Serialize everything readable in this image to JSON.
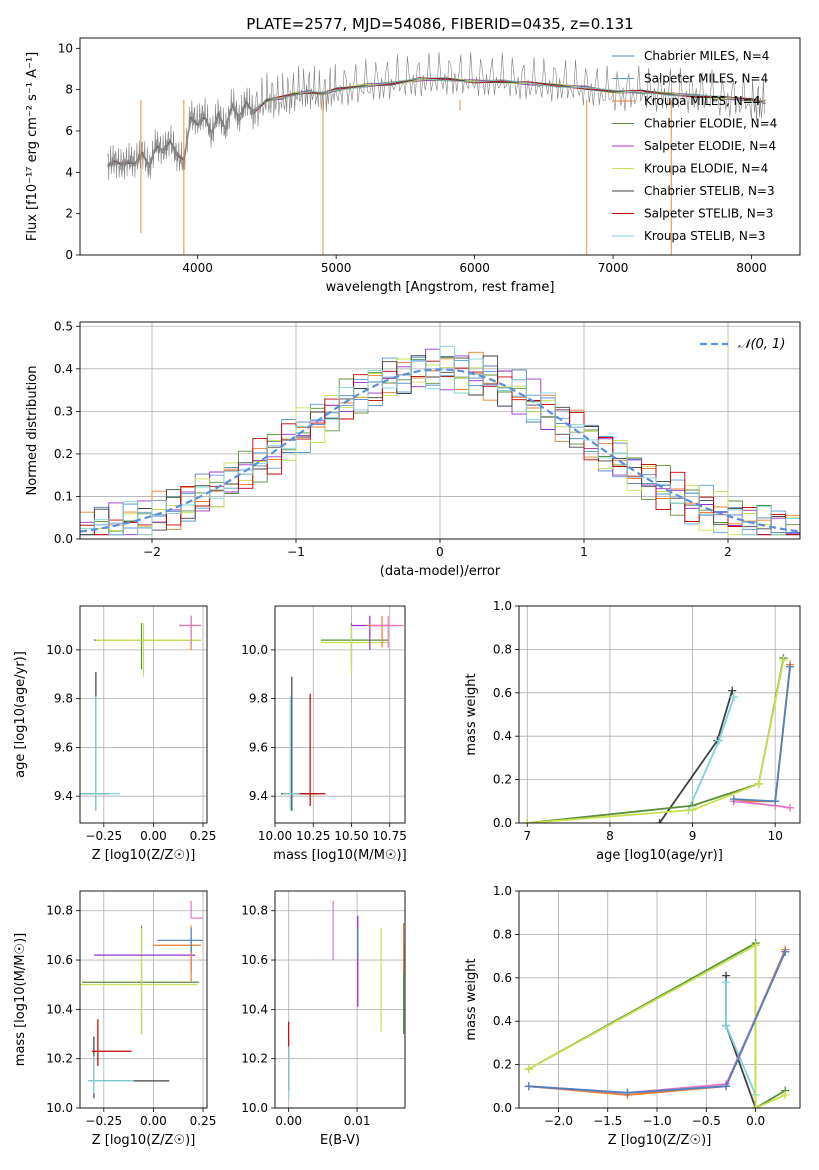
{
  "figure": {
    "title": "PLATE=2577, MJD=54086, FIBERID=0435, z=0.131"
  },
  "chart_data": [
    {
      "id": "spectrum",
      "type": "line",
      "xlabel": "wavelength [Angstrom, rest frame]",
      "ylabel": "Flux [f_λ 10^-17 erg cm^-2 s^-1 A^-1]",
      "xlim": [
        3150,
        8350
      ],
      "ylim": [
        0,
        10.5
      ],
      "xticks": [
        4000,
        5000,
        6000,
        7000,
        8000
      ],
      "yticks": [
        0,
        2,
        4,
        6,
        8,
        10
      ],
      "legend_position": "top-right",
      "data_series": {
        "name": "",
        "color": "#808080",
        "x": [
          3350,
          3400,
          3450,
          3500,
          3550,
          3600,
          3650,
          3700,
          3750,
          3800,
          3850,
          3900,
          3950,
          4000,
          4050,
          4100,
          4150,
          4200,
          4250,
          4300,
          4350,
          4400,
          4500,
          4600,
          4700,
          4800,
          4900,
          5000,
          5200,
          5400,
          5600,
          5800,
          6000,
          6200,
          6400,
          6600,
          6800,
          7000,
          7200,
          7400,
          7600,
          7800,
          8000,
          8100
        ],
        "y": [
          4.4,
          4.6,
          4.3,
          4.6,
          4.5,
          5.0,
          4.2,
          5.4,
          5.0,
          5.6,
          4.8,
          4.5,
          6.8,
          6.4,
          6.9,
          5.8,
          6.9,
          6.0,
          7.4,
          6.5,
          7.5,
          6.9,
          7.6,
          7.5,
          7.8,
          8.0,
          7.7,
          8.0,
          8.2,
          8.4,
          8.5,
          8.6,
          8.5,
          8.5,
          8.3,
          8.3,
          8.1,
          7.8,
          7.9,
          7.8,
          7.8,
          7.6,
          7.4,
          7.3
        ]
      },
      "model_series": [
        {
          "name": "Chabrier MILES, N_SSP=4",
          "color": "#4f81bd"
        },
        {
          "name": "Salpeter MILES, N_SSP=4",
          "color": "#5b9bd5"
        },
        {
          "name": "Kroupa MILES, N_SSP=4",
          "color": "#ed7d31"
        },
        {
          "name": "Chabrier ELODIE, N_SSP=4",
          "color": "#5a8f3a"
        },
        {
          "name": "Salpeter ELODIE, N_SSP=4",
          "color": "#9b30c8"
        },
        {
          "name": "Kroupa ELODIE, N_SSP=4",
          "color": "#c8e050"
        },
        {
          "name": "Chabrier STELIB, N_SSP=3",
          "color": "#404040"
        },
        {
          "name": "Salpeter STELIB, N_SSP=3",
          "color": "#c00000"
        },
        {
          "name": "Kroupa STELIB, N_SSP=3",
          "color": "#7fd4d8"
        }
      ],
      "model_x": [
        3350,
        3400,
        3450,
        3500,
        3550,
        3600,
        3650,
        3700,
        3750,
        3800,
        3850,
        3900,
        3950,
        4000,
        4050,
        4100,
        4150,
        4200,
        4250,
        4300,
        4350,
        4400,
        4500,
        4600,
        4700,
        4800,
        4900,
        5000,
        5200,
        5400,
        5600,
        5800,
        6000,
        6200,
        6400,
        6600,
        6800,
        7000,
        7200,
        7400,
        7600,
        7800,
        8000,
        8100
      ],
      "model_y": [
        4.3,
        4.5,
        4.4,
        4.5,
        4.4,
        4.9,
        4.3,
        5.3,
        5.0,
        5.5,
        4.9,
        4.6,
        6.6,
        6.3,
        6.7,
        5.9,
        6.8,
        6.1,
        7.3,
        6.6,
        7.4,
        6.9,
        7.5,
        7.6,
        7.8,
        7.9,
        7.8,
        8.0,
        8.2,
        8.3,
        8.5,
        8.5,
        8.4,
        8.4,
        8.3,
        8.2,
        8.1,
        7.9,
        7.9,
        7.8,
        7.7,
        7.6,
        7.5,
        7.4
      ]
    },
    {
      "id": "residuals",
      "type": "line",
      "xlabel": "(data-model)/error",
      "ylabel": "Normed distribution",
      "xlim": [
        -2.5,
        2.5
      ],
      "ylim": [
        0,
        0.51
      ],
      "xticks": [
        -2,
        -1,
        0,
        1,
        2
      ],
      "yticks": [
        0.0,
        0.1,
        0.2,
        0.3,
        0.4,
        0.5
      ],
      "legend_position": "top-right",
      "gaussian_label": "𝒩(0, 1)",
      "gaussian_color": "#5b8fe0",
      "hist_colors": [
        "#4f81bd",
        "#5b9bd5",
        "#ed7d31",
        "#5a8f3a",
        "#9b30c8",
        "#c8e050",
        "#404040",
        "#c00000",
        "#7fd4d8"
      ]
    },
    {
      "id": "age-vs-Z",
      "type": "scatter",
      "xlabel": "Z [log10(Z/Z☉)]",
      "ylabel": "age [log10(age/yr)]",
      "xlim": [
        -0.37,
        0.27
      ],
      "ylim": [
        9.29,
        10.18
      ],
      "xticks": [
        -0.25,
        0.0,
        0.25
      ],
      "yticks": [
        9.4,
        9.6,
        9.8,
        10.0
      ],
      "points": [
        {
          "x": -0.29,
          "y": 9.41,
          "xerr": [
            0.37,
            0.07
          ],
          "yerr": [
            0.07,
            0.5
          ],
          "color": "#404040"
        },
        {
          "x": -0.29,
          "y": 9.41,
          "xerr": [
            0.12,
            0.12
          ],
          "yerr": [
            0.07,
            0.4
          ],
          "color": "#7fd4d8"
        },
        {
          "x": -0.06,
          "y": 10.04,
          "xerr": [
            0.24,
            0.3
          ],
          "yerr": [
            0.12,
            0.07
          ],
          "color": "#5a8f3a"
        },
        {
          "x": -0.05,
          "y": 10.04,
          "xerr": [
            0.24,
            0.29
          ],
          "yerr": [
            0.15,
            0.07
          ],
          "color": "#c8e050"
        },
        {
          "x": 0.19,
          "y": 10.1,
          "xerr": [
            0.06,
            0.05
          ],
          "yerr": [
            0.1,
            0.04
          ],
          "color": "#ed7d31"
        },
        {
          "x": 0.19,
          "y": 10.1,
          "xerr": [
            0.06,
            0.05
          ],
          "yerr": [
            0.08,
            0.04
          ],
          "color": "#e377c2"
        }
      ]
    },
    {
      "id": "age-vs-mass",
      "type": "scatter",
      "xlabel": "mass [log10(M/M☉)]",
      "ylabel": "",
      "xlim": [
        10.0,
        10.85
      ],
      "ylim": [
        9.29,
        10.18
      ],
      "xticks": [
        10.0,
        10.25,
        10.5,
        10.75
      ],
      "yticks": [
        9.4,
        9.6,
        9.8,
        10.0
      ],
      "points": [
        {
          "x": 10.11,
          "y": 9.41,
          "xerr": [
            0.07,
            0.17
          ],
          "yerr": [
            0.07,
            0.48
          ],
          "color": "#404040"
        },
        {
          "x": 10.1,
          "y": 9.41,
          "xerr": [
            0.05,
            0.1
          ],
          "yerr": [
            0.07,
            0.4
          ],
          "color": "#7fd4d8"
        },
        {
          "x": 10.23,
          "y": 9.41,
          "xerr": [
            0.07,
            0.1
          ],
          "yerr": [
            0.05,
            0.41
          ],
          "color": "#c00000"
        },
        {
          "x": 10.5,
          "y": 10.04,
          "xerr": [
            0.2,
            0.24
          ],
          "yerr": [
            0.12,
            0.07
          ],
          "color": "#5a8f3a"
        },
        {
          "x": 10.5,
          "y": 10.03,
          "xerr": [
            0.2,
            0.24
          ],
          "yerr": [
            0.13,
            0.07
          ],
          "color": "#c8e050"
        },
        {
          "x": 10.62,
          "y": 10.1,
          "xerr": [
            0.12,
            0.12
          ],
          "yerr": [
            0.1,
            0.04
          ],
          "color": "#9b30c8"
        },
        {
          "x": 10.7,
          "y": 10.1,
          "xerr": [
            0.1,
            0.1
          ],
          "yerr": [
            0.09,
            0.04
          ],
          "color": "#ed7d31"
        },
        {
          "x": 10.74,
          "y": 10.1,
          "xerr": [
            0.1,
            0.1
          ],
          "yerr": [
            0.09,
            0.04
          ],
          "color": "#e377c2"
        }
      ]
    },
    {
      "id": "weight-vs-age",
      "type": "line",
      "xlabel": "age [log10(age/yr)]",
      "ylabel": "mass weight",
      "xlim": [
        6.9,
        10.3
      ],
      "ylim": [
        0,
        1.0
      ],
      "xticks": [
        7,
        8,
        9,
        10
      ],
      "yticks": [
        0.0,
        0.2,
        0.4,
        0.6,
        0.8,
        1.0
      ],
      "series": [
        {
          "color": "#404040",
          "x": [
            8.6,
            9.3,
            9.48
          ],
          "y": [
            0.0,
            0.38,
            0.61
          ]
        },
        {
          "color": "#7fd4d8",
          "x": [
            8.95,
            9.32,
            9.5
          ],
          "y": [
            0.06,
            0.38,
            0.58
          ]
        },
        {
          "color": "#5a8f3a",
          "x": [
            7.0,
            9.0,
            9.8,
            10.1
          ],
          "y": [
            0.0,
            0.08,
            0.18,
            0.76
          ]
        },
        {
          "color": "#c8e050",
          "x": [
            7.0,
            9.0,
            9.8,
            10.1
          ],
          "y": [
            0.0,
            0.06,
            0.18,
            0.75
          ]
        },
        {
          "color": "#ed7d31",
          "x": [
            9.5,
            10.0,
            10.18
          ],
          "y": [
            0.1,
            0.1,
            0.73
          ]
        },
        {
          "color": "#e377c2",
          "x": [
            9.5,
            10.0,
            10.18
          ],
          "y": [
            0.1,
            0.08,
            0.07
          ]
        },
        {
          "color": "#4f81bd",
          "x": [
            9.5,
            10.0,
            10.18
          ],
          "y": [
            0.11,
            0.1,
            0.72
          ]
        }
      ]
    },
    {
      "id": "mass-vs-Z",
      "type": "scatter",
      "xlabel": "Z [log10(Z/Z☉)]",
      "ylabel": "mass [log10(M/M☉)]",
      "xlim": [
        -0.37,
        0.27
      ],
      "ylim": [
        10.0,
        10.88
      ],
      "xticks": [
        -0.25,
        0.0,
        0.25
      ],
      "yticks": [
        10.0,
        10.2,
        10.4,
        10.6,
        10.8
      ],
      "points": [
        {
          "x": -0.3,
          "y": 10.11,
          "xerr": [
            0.03,
            0.38
          ],
          "yerr": [
            0.07,
            0.18
          ],
          "color": "#404040"
        },
        {
          "x": -0.3,
          "y": 10.11,
          "xerr": [
            0.03,
            0.2
          ],
          "yerr": [
            0.05,
            0.1
          ],
          "color": "#7fd4d8"
        },
        {
          "x": -0.28,
          "y": 10.23,
          "xerr": [
            0.03,
            0.17
          ],
          "yerr": [
            0.06,
            0.13
          ],
          "color": "#c00000"
        },
        {
          "x": -0.06,
          "y": 10.51,
          "xerr": [
            0.3,
            0.29
          ],
          "yerr": [
            0.21,
            0.23
          ],
          "color": "#5a8f3a"
        },
        {
          "x": -0.06,
          "y": 10.5,
          "xerr": [
            0.32,
            0.28
          ],
          "yerr": [
            0.2,
            0.23
          ],
          "color": "#c8e050"
        },
        {
          "x": 0.19,
          "y": 10.62,
          "xerr": [
            0.49,
            0.02
          ],
          "yerr": [
            0.07,
            0.07
          ],
          "color": "#9b30c8"
        },
        {
          "x": 0.19,
          "y": 10.66,
          "xerr": [
            0.19,
            0.05
          ],
          "yerr": [
            0.15,
            0.08
          ],
          "color": "#ed7d31"
        },
        {
          "x": 0.19,
          "y": 10.68,
          "xerr": [
            0.17,
            0.06
          ],
          "yerr": [
            0.05,
            0.05
          ],
          "color": "#4f81bd"
        },
        {
          "x": 0.19,
          "y": 10.77,
          "xerr": [
            0.0,
            0.06
          ],
          "yerr": [
            0.0,
            0.07
          ],
          "color": "#e377c2"
        }
      ]
    },
    {
      "id": "mass-vs-EBV",
      "type": "scatter",
      "xlabel": "E(B-V)",
      "ylabel": "",
      "xlim": [
        -0.002,
        0.017
      ],
      "ylim": [
        10.0,
        10.88
      ],
      "xticks": [
        0.0,
        0.01
      ],
      "yticks": [
        10.0,
        10.2,
        10.4,
        10.6,
        10.8
      ],
      "points": [
        {
          "x": 0.0,
          "y": 10.2,
          "yerr": [
            0.13,
            0.15
          ],
          "color": "#c00000"
        },
        {
          "x": 0.0,
          "y": 10.14,
          "yerr": [
            0.1,
            0.11
          ],
          "color": "#7fd4d8"
        },
        {
          "x": 0.0065,
          "y": 10.72,
          "yerr": [
            0.12,
            0.12
          ],
          "color": "#e377c2"
        },
        {
          "x": 0.0101,
          "y": 10.6,
          "yerr": [
            0.19,
            0.18
          ],
          "color": "#9b30c8"
        },
        {
          "x": 0.0101,
          "y": 10.66,
          "yerr": [
            0.05,
            0.07
          ],
          "color": "#4f81bd"
        },
        {
          "x": 0.0135,
          "y": 10.52,
          "yerr": [
            0.21,
            0.21
          ],
          "color": "#c8e050"
        },
        {
          "x": 0.0168,
          "y": 10.5,
          "yerr": [
            0.2,
            0.17
          ],
          "color": "#5a8f3a"
        },
        {
          "x": 0.0168,
          "y": 10.55,
          "yerr": [
            0.0,
            0.2
          ],
          "color": "#ed7d31"
        }
      ]
    },
    {
      "id": "weight-vs-Z",
      "type": "line",
      "xlabel": "Z [log10(Z/Z☉)]",
      "ylabel": "mass weight",
      "xlim": [
        -2.4,
        0.45
      ],
      "ylim": [
        0,
        1.0
      ],
      "xticks": [
        -2.0,
        -1.5,
        -1.0,
        -0.5,
        0.0
      ],
      "yticks": [
        0.0,
        0.2,
        0.4,
        0.6,
        0.8,
        1.0
      ],
      "series": [
        {
          "color": "#404040",
          "x": [
            -0.3,
            -0.3,
            0.0
          ],
          "y": [
            0.61,
            0.38,
            0.0
          ]
        },
        {
          "color": "#7fd4d8",
          "x": [
            -0.3,
            -0.3,
            0.0
          ],
          "y": [
            0.58,
            0.38,
            0.06
          ]
        },
        {
          "color": "#5a8f3a",
          "x": [
            -2.3,
            0.0,
            0.0,
            0.3
          ],
          "y": [
            0.18,
            0.76,
            0.0,
            0.08
          ]
        },
        {
          "color": "#c8e050",
          "x": [
            -2.3,
            0.0,
            0.0,
            0.3
          ],
          "y": [
            0.18,
            0.75,
            0.0,
            0.06
          ]
        },
        {
          "color": "#ed7d31",
          "x": [
            -2.3,
            -1.3,
            -0.3,
            0.3
          ],
          "y": [
            0.1,
            0.06,
            0.1,
            0.73
          ]
        },
        {
          "color": "#e377c2",
          "x": [
            -2.3,
            -1.3,
            -0.3,
            0.3
          ],
          "y": [
            0.1,
            0.07,
            0.11,
            0.72
          ]
        },
        {
          "color": "#4f81bd",
          "x": [
            -2.3,
            -1.3,
            -0.3,
            0.3
          ],
          "y": [
            0.1,
            0.07,
            0.1,
            0.72
          ]
        }
      ]
    }
  ]
}
